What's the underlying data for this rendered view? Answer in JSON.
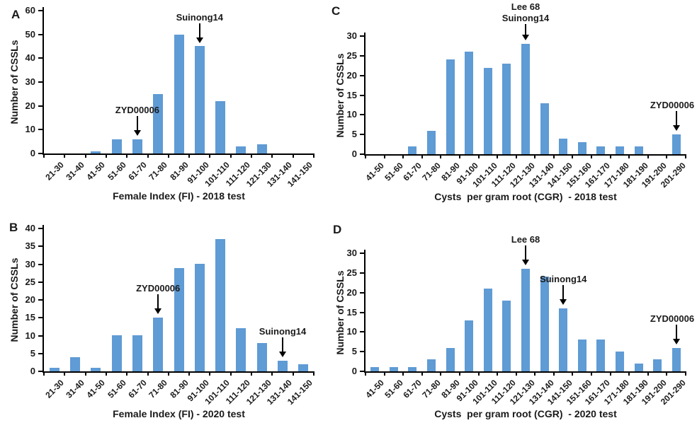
{
  "figure": {
    "background_color": "#ffffff",
    "bar_color": "#5f9bd4",
    "axis_color": "#000000",
    "text_color": "#1a1a1a"
  },
  "chart_data": [
    {
      "type": "bar",
      "panel": "A",
      "title": "",
      "xlabel": "Female Index (FI) - 2018 test",
      "ylabel": "Number of CSSLs",
      "ylim": [
        0,
        60
      ],
      "ytick_step": 10,
      "grid": false,
      "legend": "none",
      "categories": [
        "21-30",
        "31-40",
        "41-50",
        "51-60",
        "61-70",
        "71-80",
        "81-90",
        "91-100",
        "101-110",
        "111-120",
        "121-130",
        "131-140",
        "141-150"
      ],
      "values": [
        0,
        0,
        1,
        6,
        6,
        25,
        50,
        45,
        22,
        3,
        4,
        0,
        0
      ],
      "annotations": [
        {
          "lines": [
            "ZYD00006"
          ],
          "category": "61-70"
        },
        {
          "lines": [
            "Suinong14"
          ],
          "category": "91-100"
        }
      ]
    },
    {
      "type": "bar",
      "panel": "B",
      "title": "",
      "xlabel": "Female Index (FI) - 2020 test",
      "ylabel": "Number of CSSLs",
      "ylim": [
        0,
        40
      ],
      "ytick_step": 5,
      "grid": false,
      "legend": "none",
      "categories": [
        "21-30",
        "31-40",
        "41-50",
        "51-60",
        "61-70",
        "71-80",
        "81-90",
        "91-100",
        "101-110",
        "111-120",
        "121-130",
        "131-140",
        "141-150"
      ],
      "values": [
        1,
        4,
        1,
        10,
        10,
        15,
        29,
        30,
        37,
        12,
        8,
        3,
        2
      ],
      "annotations": [
        {
          "lines": [
            "ZYD00006"
          ],
          "category": "71-80"
        },
        {
          "lines": [
            "Suinong14"
          ],
          "category": "131-140"
        }
      ]
    },
    {
      "type": "bar",
      "panel": "C",
      "title": "",
      "xlabel": "Cysts  per gram root (CGR)  - 2018 test",
      "ylabel": "Number of CSSLs",
      "ylim": [
        0,
        30
      ],
      "ytick_step": 5,
      "grid": false,
      "legend": "none",
      "categories": [
        "41-50",
        "51-60",
        "61-70",
        "71-80",
        "81-90",
        "91-100",
        "101-110",
        "111-120",
        "121-130",
        "131-140",
        "141-150",
        "151-160",
        "161-170",
        "171-180",
        "181-190",
        "191-200",
        "201-290"
      ],
      "values": [
        0,
        0,
        2,
        6,
        24,
        26,
        22,
        23,
        28,
        13,
        4,
        3,
        2,
        2,
        2,
        0,
        5
      ],
      "annotations": [
        {
          "lines": [
            "Lee 68",
            "Suinong14"
          ],
          "category": "121-130"
        },
        {
          "lines": [
            "ZYD00006"
          ],
          "category": "201-290"
        }
      ]
    },
    {
      "type": "bar",
      "panel": "D",
      "title": "",
      "xlabel": "Cysts  per gram root (CGR)  - 2020 test",
      "ylabel": "Number of CSSLs",
      "ylim": [
        0,
        30
      ],
      "ytick_step": 5,
      "grid": false,
      "legend": "none",
      "categories": [
        "41-50",
        "51-60",
        "61-70",
        "71-80",
        "81-90",
        "91-100",
        "101-110",
        "111-120",
        "121-130",
        "131-140",
        "141-150",
        "151-160",
        "161-170",
        "171-180",
        "181-190",
        "191-200",
        "201-290"
      ],
      "values": [
        1,
        1,
        1,
        3,
        6,
        13,
        21,
        18,
        26,
        24,
        16,
        8,
        8,
        5,
        2,
        3,
        6
      ],
      "annotations": [
        {
          "lines": [
            "Lee 68"
          ],
          "category": "121-130"
        },
        {
          "lines": [
            "Suinong14"
          ],
          "category": "141-150"
        },
        {
          "lines": [
            "ZYD00006"
          ],
          "category": "201-290"
        }
      ]
    }
  ]
}
